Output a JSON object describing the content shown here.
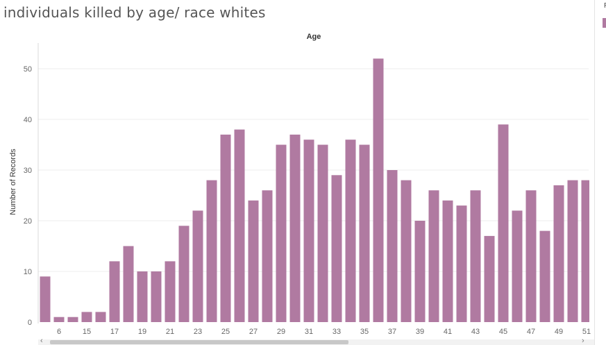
{
  "page": {
    "title": "individuals killed by age/ race whites",
    "legend_title_partial": "R",
    "legend_color": "#b07aa1"
  },
  "chart_data": {
    "type": "bar",
    "title": "individuals killed by age/ race whites",
    "column_header": "Age",
    "ylabel": "Number of Records",
    "xlabel": "",
    "bar_color": "#b07aa1",
    "ylim": [
      0,
      55
    ],
    "yticks": [
      0,
      10,
      20,
      30,
      40,
      50
    ],
    "grid": true,
    "categories": [
      "5",
      "6",
      "14",
      "15",
      "16",
      "17",
      "18",
      "19",
      "20",
      "21",
      "22",
      "23",
      "24",
      "25",
      "26",
      "27",
      "28",
      "29",
      "30",
      "31",
      "32",
      "33",
      "34",
      "35",
      "36",
      "37",
      "38",
      "39",
      "40",
      "41",
      "42",
      "43",
      "44",
      "45",
      "46",
      "47",
      "48",
      "49",
      "50",
      "51"
    ],
    "values": [
      9,
      1,
      1,
      2,
      2,
      12,
      15,
      10,
      10,
      12,
      19,
      22,
      28,
      37,
      38,
      24,
      26,
      35,
      37,
      36,
      35,
      29,
      36,
      35,
      52,
      30,
      28,
      20,
      26,
      24,
      23,
      26,
      17,
      39,
      22,
      26,
      18,
      27,
      28,
      28
    ],
    "x_tick_labels_shown": [
      "6",
      "15",
      "17",
      "19",
      "21",
      "23",
      "25",
      "27",
      "29",
      "31",
      "33",
      "35",
      "37",
      "39",
      "41",
      "43",
      "45",
      "47",
      "49",
      "51"
    ]
  },
  "scrollbar": {
    "left_arrow": "‹",
    "right_arrow": "›"
  }
}
